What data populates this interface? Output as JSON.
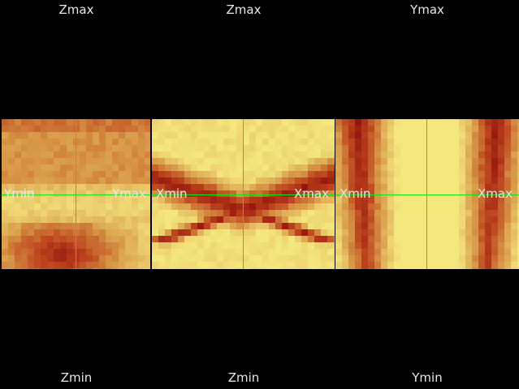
{
  "views": [
    {
      "id": "view-1",
      "top_label": "Zmax",
      "bottom_label": "Zmin",
      "left_label": "Ymin",
      "right_label": "Ymax"
    },
    {
      "id": "view-2",
      "top_label": "Zmax",
      "bottom_label": "Zmin",
      "left_label": "Xmin",
      "right_label": "Xmax"
    },
    {
      "id": "view-3",
      "top_label": "Ymax",
      "bottom_label": "Ymin",
      "left_label": "Xmin",
      "right_label": "Xmax"
    }
  ],
  "colors": {
    "background": "#000000",
    "crosshair": "#19e019",
    "colormap_low": "#8b0a0a",
    "colormap_high": "#f3e67a"
  }
}
